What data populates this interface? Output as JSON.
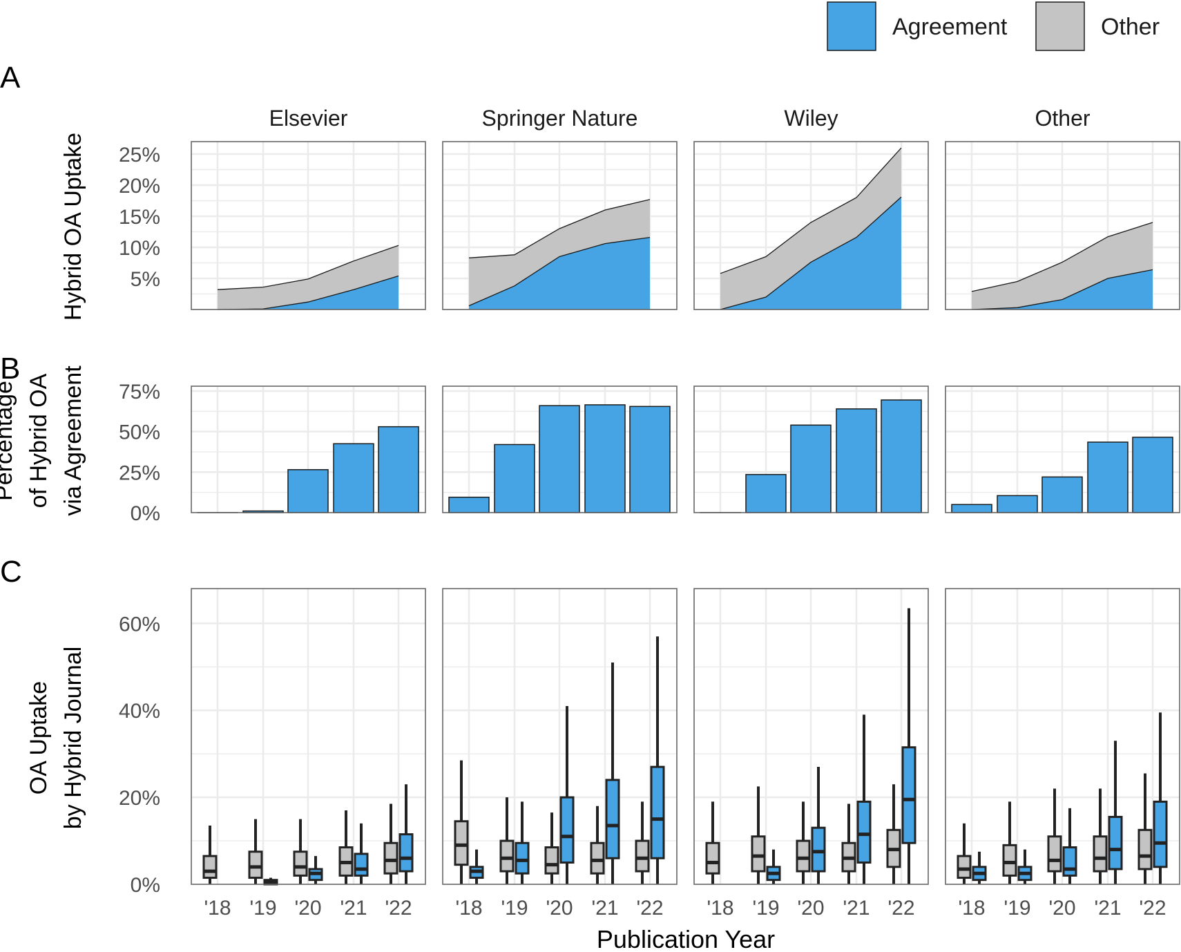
{
  "colors": {
    "agreement": "#46a4e4",
    "other": "#c4c4c4",
    "grid": "#ebebeb",
    "frame": "#666666",
    "outline": "#1a1a1a"
  },
  "legend": {
    "items": [
      {
        "label": "Agreement",
        "color": "#46a4e4"
      },
      {
        "label": "Other",
        "color": "#c4c4c4"
      }
    ],
    "placement": "top-right"
  },
  "x_axis": {
    "title": "Publication Year",
    "tick_labels": [
      "'18",
      "'19",
      "'20",
      "'21",
      "'22"
    ]
  },
  "panel_tags": [
    "A",
    "B",
    "C"
  ],
  "chart_data": [
    {
      "type": "area",
      "tag": "A",
      "ylabel": "Hybrid OA Uptake",
      "ylim": [
        0,
        27
      ],
      "yticks": [
        5,
        10,
        15,
        20,
        25
      ],
      "ytick_labels": [
        "5%",
        "10%",
        "15%",
        "20%",
        "25%"
      ],
      "grid": true,
      "stacked": true,
      "x": [
        2018,
        2019,
        2020,
        2021,
        2022
      ],
      "facets": [
        {
          "name": "Elsevier",
          "agreement": [
            0.0,
            0.1,
            1.2,
            3.2,
            5.4
          ],
          "total": [
            3.2,
            3.6,
            4.9,
            7.8,
            10.3
          ]
        },
        {
          "name": "Springer Nature",
          "agreement": [
            0.6,
            3.8,
            8.5,
            10.6,
            11.6
          ],
          "total": [
            8.3,
            8.8,
            13.0,
            16.0,
            17.7
          ]
        },
        {
          "name": "Wiley",
          "agreement": [
            0.0,
            2.0,
            7.6,
            11.6,
            18.1
          ],
          "total": [
            5.8,
            8.5,
            14.0,
            18.0,
            26.0
          ]
        },
        {
          "name": "Other",
          "agreement": [
            0.0,
            0.3,
            1.6,
            5.0,
            6.4
          ],
          "total": [
            2.9,
            4.5,
            7.6,
            11.7,
            14.0
          ]
        }
      ]
    },
    {
      "type": "bar",
      "tag": "B",
      "ylabel": [
        "Percentage",
        "of Hybrid OA",
        "via Agreement"
      ],
      "ylim": [
        0,
        78
      ],
      "yticks": [
        0,
        25,
        50,
        75
      ],
      "ytick_labels": [
        "0%",
        "25%",
        "50%",
        "75%"
      ],
      "grid": true,
      "x": [
        2018,
        2019,
        2020,
        2021,
        2022
      ],
      "facets": [
        {
          "name": "Elsevier",
          "values": [
            0,
            1,
            26.5,
            42.5,
            53
          ]
        },
        {
          "name": "Springer Nature",
          "values": [
            9.5,
            42,
            66,
            66.5,
            65.5
          ]
        },
        {
          "name": "Wiley",
          "values": [
            0,
            23.5,
            54,
            64,
            69.5
          ]
        },
        {
          "name": "Other",
          "values": [
            5,
            10.5,
            22,
            43.5,
            46.5
          ]
        }
      ]
    },
    {
      "type": "boxplot",
      "tag": "C",
      "ylabel": [
        "OA Uptake",
        "by Hybrid Journal"
      ],
      "ylim": [
        0,
        68
      ],
      "yticks": [
        0,
        20,
        40,
        60
      ],
      "ytick_labels": [
        "0%",
        "20%",
        "40%",
        "60%"
      ],
      "grid": true,
      "x": [
        2018,
        2019,
        2020,
        2021,
        2022
      ],
      "series": [
        "Other",
        "Agreement"
      ],
      "facets": [
        {
          "name": "Elsevier",
          "other": [
            [
              0,
              1.5,
              3,
              6.5,
              13.5
            ],
            [
              0,
              1.5,
              4,
              7.5,
              15
            ],
            [
              0,
              2,
              4,
              7.5,
              15
            ],
            [
              0,
              2,
              5,
              8.5,
              17
            ],
            [
              0,
              2.5,
              5.5,
              9.5,
              18.5
            ]
          ],
          "agreement": [
            null,
            [
              0,
              0,
              0.5,
              1,
              1.5
            ],
            [
              0,
              1,
              2.5,
              3.5,
              6.5
            ],
            [
              0,
              2,
              3.5,
              7,
              14
            ],
            [
              0,
              3,
              6,
              11.5,
              23
            ]
          ]
        },
        {
          "name": "Springer Nature",
          "other": [
            [
              0,
              4.5,
              9,
              14.5,
              28.5
            ],
            [
              0,
              3,
              6,
              10,
              20
            ],
            [
              0,
              2.5,
              4.5,
              8.5,
              16.5
            ],
            [
              0,
              2.5,
              5.5,
              9.5,
              18
            ],
            [
              0,
              3,
              6,
              10,
              19
            ]
          ],
          "agreement": [
            [
              0,
              1.5,
              3,
              4,
              8
            ],
            [
              0,
              2.5,
              5.5,
              9.5,
              19
            ],
            [
              0,
              5,
              11,
              20,
              41
            ],
            [
              0,
              6,
              13.5,
              24,
              51
            ],
            [
              0,
              6,
              15,
              27,
              57
            ]
          ]
        },
        {
          "name": "Wiley",
          "other": [
            [
              0,
              2.5,
              5,
              9.5,
              19
            ],
            [
              0,
              3,
              6.5,
              11,
              22.5
            ],
            [
              0,
              3,
              6,
              10,
              19
            ],
            [
              0,
              3,
              6,
              9.5,
              18.5
            ],
            [
              0,
              4,
              8,
              12.5,
              23
            ]
          ],
          "agreement": [
            null,
            [
              0,
              1,
              2.5,
              4,
              8
            ],
            [
              0,
              3,
              7.5,
              13,
              27
            ],
            [
              0,
              5,
              11.5,
              19,
              39
            ],
            [
              0,
              9.5,
              19.5,
              31.5,
              63.5
            ]
          ]
        },
        {
          "name": "Other",
          "other": [
            [
              0,
              1.5,
              3.5,
              6.5,
              14
            ],
            [
              0,
              2,
              5,
              9,
              19
            ],
            [
              0,
              3,
              5.5,
              11,
              22
            ],
            [
              0,
              3,
              6,
              11,
              22
            ],
            [
              0,
              3.5,
              6.5,
              12.5,
              25.5
            ]
          ],
          "agreement": [
            [
              0,
              1,
              2.5,
              4,
              7.5
            ],
            [
              0,
              1,
              2.5,
              4,
              8
            ],
            [
              0,
              2,
              3.5,
              8.5,
              17.5
            ],
            [
              0,
              3.5,
              8,
              15.5,
              33
            ],
            [
              0,
              4,
              9.5,
              19,
              39.5
            ]
          ]
        }
      ]
    }
  ]
}
